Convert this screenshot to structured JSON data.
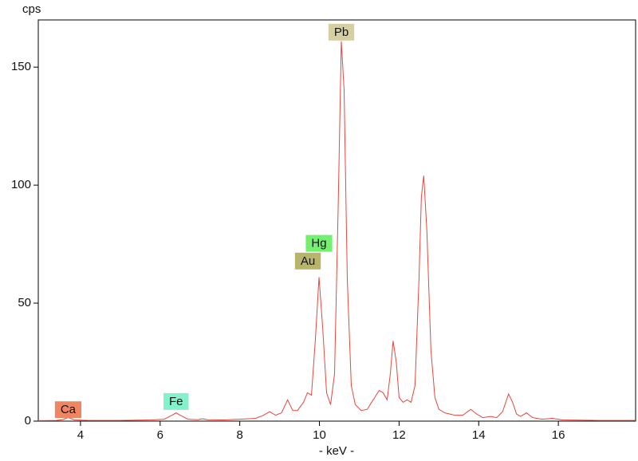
{
  "chart_data": {
    "type": "line",
    "y_unit_label": "cps",
    "x_axis_label": "- keV -",
    "xlim": [
      2.94,
      17.94
    ],
    "ylim": [
      0,
      170
    ],
    "xticks": [
      4,
      6,
      8,
      10,
      12,
      14,
      16
    ],
    "yticks": [
      0,
      50,
      100,
      150
    ],
    "grid": false,
    "series": [
      {
        "color": "#e8463c",
        "x": [
          2.94,
          3.4,
          3.55,
          3.69,
          3.85,
          4.2,
          5.0,
          5.8,
          6.1,
          6.3,
          6.4,
          6.5,
          6.7,
          6.95,
          7.06,
          7.2,
          7.6,
          8.0,
          8.4,
          8.6,
          8.75,
          8.9,
          9.05,
          9.2,
          9.33,
          9.45,
          9.6,
          9.7,
          9.8,
          9.9,
          9.99,
          10.08,
          10.18,
          10.28,
          10.38,
          10.47,
          10.55,
          10.62,
          10.7,
          10.8,
          10.9,
          11.05,
          11.2,
          11.35,
          11.5,
          11.6,
          11.7,
          11.78,
          11.85,
          11.93,
          12.0,
          12.1,
          12.2,
          12.3,
          12.4,
          12.5,
          12.56,
          12.62,
          12.7,
          12.8,
          12.9,
          13.0,
          13.15,
          13.4,
          13.6,
          13.8,
          13.95,
          14.1,
          14.3,
          14.45,
          14.6,
          14.75,
          14.85,
          14.95,
          15.05,
          15.2,
          15.35,
          15.6,
          15.85,
          16.1,
          17.0,
          17.94
        ],
        "values": [
          0.2,
          0.3,
          0.6,
          1.5,
          0.5,
          0.3,
          0.3,
          0.5,
          0.8,
          2.5,
          3.5,
          2.5,
          0.8,
          0.6,
          1.0,
          0.6,
          0.5,
          0.8,
          1.2,
          2.5,
          4,
          2.5,
          3.5,
          9,
          4.5,
          4.5,
          8,
          12,
          11,
          35,
          61,
          40,
          12,
          7,
          20,
          90,
          161,
          140,
          60,
          15,
          7,
          4.5,
          5,
          9,
          13,
          12,
          9,
          20,
          34,
          25,
          10,
          8,
          9,
          8,
          15,
          60,
          95,
          104,
          80,
          30,
          10,
          5,
          3.5,
          2.5,
          2.5,
          5,
          3,
          1.5,
          2,
          1.5,
          4,
          11.5,
          8,
          3,
          2,
          3.5,
          1.5,
          0.8,
          1.2,
          0.5,
          0.3,
          0.3
        ]
      }
    ],
    "annotations": [
      {
        "text": "Ca",
        "x": 3.69,
        "y": 5,
        "color": "#f08562"
      },
      {
        "text": "Fe",
        "x": 6.4,
        "y": 8.5,
        "color": "#84f0cc"
      },
      {
        "text": "Au",
        "x": 9.71,
        "y": 68,
        "color": "#b8b46c"
      },
      {
        "text": "Hg",
        "x": 9.99,
        "y": 75.5,
        "color": "#74f070"
      },
      {
        "text": "Pb",
        "x": 10.55,
        "y": 165,
        "color": "#d6cfa4"
      }
    ]
  }
}
